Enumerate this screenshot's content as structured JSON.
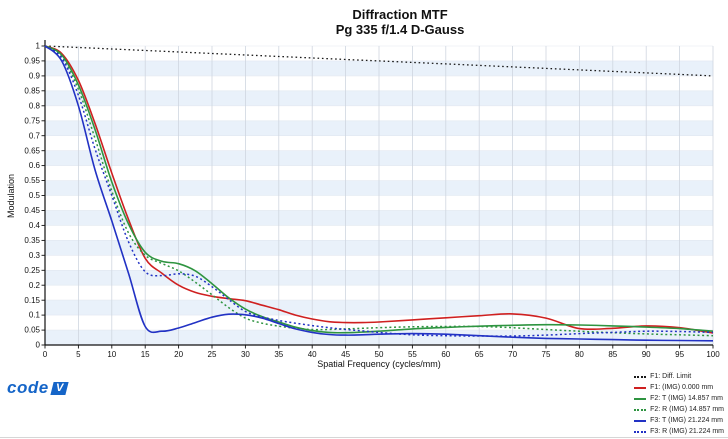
{
  "title": {
    "line1": "Diffraction MTF",
    "line2": "Pg 335 f/1.4 D-Gauss"
  },
  "axes": {
    "x_label": "Spatial Frequency (cycles/mm)",
    "y_label": "Modulation",
    "x_ticks": [
      "0",
      "5",
      "10",
      "15",
      "20",
      "25",
      "30",
      "35",
      "40",
      "45",
      "50",
      "55",
      "60",
      "65",
      "70",
      "75",
      "80",
      "85",
      "90",
      "95",
      "100"
    ],
    "y_ticks": [
      "1",
      "0.95",
      "0.9",
      "0.85",
      "0.8",
      "0.75",
      "0.7",
      "0.65",
      "0.6",
      "0.55",
      "0.5",
      "0.45",
      "0.4",
      "0.35",
      "0.3",
      "0.25",
      "0.2",
      "0.15",
      "0.1",
      "0.05",
      "0"
    ]
  },
  "logo": {
    "text": "code",
    "mark": "V"
  },
  "colors": {
    "band": "#e9f1fa",
    "grid": "#cfd6e0",
    "band_line": "#e2e8f0",
    "axis": "#111111"
  },
  "chart_data": {
    "type": "line",
    "title": "Diffraction MTF",
    "subtitle": "Pg 335 f/1.4 D-Gauss",
    "xlabel": "Spatial Frequency (cycles/mm)",
    "ylabel": "Modulation",
    "xlim": [
      0,
      100
    ],
    "ylim": [
      0,
      1
    ],
    "grid": "alternating horizontal bands every 0.05, vertical gridlines every 5",
    "legend_position": "bottom-right outside plot",
    "x": [
      0,
      2.5,
      5,
      7.5,
      10,
      12.5,
      15,
      17.5,
      20,
      22.5,
      25,
      27.5,
      30,
      32.5,
      35,
      37.5,
      40,
      42.5,
      45,
      47.5,
      50,
      55,
      60,
      65,
      70,
      75,
      80,
      85,
      90,
      95,
      100
    ],
    "series": [
      {
        "name": "F1: Diff. Limit",
        "color": "#1a1a1a",
        "style": "dotted",
        "values": [
          1,
          0.9975,
          0.995,
          0.9925,
          0.99,
          0.9875,
          0.985,
          0.9825,
          0.98,
          0.9775,
          0.975,
          0.9725,
          0.97,
          0.9675,
          0.965,
          0.9625,
          0.96,
          0.9575,
          0.955,
          0.9525,
          0.95,
          0.945,
          0.94,
          0.935,
          0.93,
          0.925,
          0.92,
          0.915,
          0.91,
          0.905,
          0.9
        ]
      },
      {
        "name": "F1: (IMG) 0.000 mm",
        "color": "#cf2020",
        "style": "solid",
        "values": [
          1,
          0.975,
          0.885,
          0.74,
          0.575,
          0.42,
          0.29,
          0.24,
          0.2,
          0.176,
          0.163,
          0.155,
          0.148,
          0.133,
          0.118,
          0.1,
          0.087,
          0.078,
          0.075,
          0.075,
          0.077,
          0.084,
          0.091,
          0.098,
          0.104,
          0.09,
          0.055,
          0.056,
          0.064,
          0.058,
          0.04
        ]
      },
      {
        "name": "F2: T (IMG) 14.857 mm",
        "color": "#2e9440",
        "style": "solid",
        "values": [
          1,
          0.97,
          0.87,
          0.72,
          0.545,
          0.405,
          0.31,
          0.28,
          0.272,
          0.248,
          0.205,
          0.158,
          0.12,
          0.095,
          0.077,
          0.06,
          0.048,
          0.042,
          0.041,
          0.043,
          0.046,
          0.054,
          0.059,
          0.063,
          0.066,
          0.068,
          0.067,
          0.064,
          0.06,
          0.055,
          0.046
        ]
      },
      {
        "name": "F2: R (IMG) 14.857 mm",
        "color": "#2e9440",
        "style": "dotted",
        "values": [
          1,
          0.965,
          0.855,
          0.69,
          0.515,
          0.375,
          0.3,
          0.273,
          0.248,
          0.21,
          0.168,
          0.125,
          0.09,
          0.073,
          0.063,
          0.056,
          0.052,
          0.052,
          0.054,
          0.056,
          0.058,
          0.061,
          0.062,
          0.062,
          0.058,
          0.052,
          0.046,
          0.041,
          0.037,
          0.034,
          0.031
        ]
      },
      {
        "name": "F3: T (IMG) 21.224 mm",
        "color": "#2232c4",
        "style": "solid",
        "values": [
          1,
          0.95,
          0.8,
          0.585,
          0.415,
          0.24,
          0.062,
          0.046,
          0.057,
          0.075,
          0.093,
          0.103,
          0.101,
          0.09,
          0.072,
          0.054,
          0.042,
          0.035,
          0.033,
          0.034,
          0.036,
          0.038,
          0.036,
          0.031,
          0.026,
          0.022,
          0.02,
          0.018,
          0.016,
          0.015,
          0.014
        ]
      },
      {
        "name": "F3: R (IMG) 21.224 mm",
        "color": "#2232c4",
        "style": "dotted",
        "values": [
          1,
          0.96,
          0.835,
          0.655,
          0.5,
          0.345,
          0.245,
          0.232,
          0.238,
          0.23,
          0.195,
          0.152,
          0.112,
          0.094,
          0.082,
          0.073,
          0.065,
          0.058,
          0.052,
          0.047,
          0.042,
          0.034,
          0.031,
          0.03,
          0.03,
          0.033,
          0.038,
          0.042,
          0.046,
          0.045,
          0.042
        ]
      }
    ]
  }
}
